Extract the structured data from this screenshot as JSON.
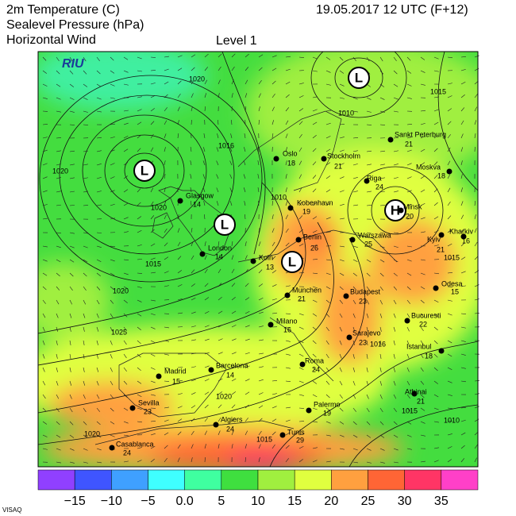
{
  "header": {
    "lines": [
      "2m Temperature (C)",
      "Sealevel Pressure (hPa)",
      "Horizontal Wind"
    ],
    "level": "Level  1",
    "valid_time": "19.05.2017 12 UTC (F+12)"
  },
  "logo": "RIU",
  "pressure_centers": [
    "L",
    "L",
    "L",
    "L",
    "H"
  ],
  "isobar_labels": [
    "1020",
    "1015",
    "1010",
    "1016",
    "1020",
    "1010",
    "1020",
    "1015",
    "1015",
    "1020",
    "1025",
    "1016",
    "1020",
    "1015",
    "1010",
    "1020",
    "1015"
  ],
  "cities": [
    {
      "name": "Oslo",
      "temp": 18
    },
    {
      "name": "Stockholm",
      "temp": 21
    },
    {
      "name": "Sankt Peterburg",
      "temp": 21
    },
    {
      "name": "Moskva",
      "temp": 18
    },
    {
      "name": "Riga",
      "temp": 24
    },
    {
      "name": "Minsk",
      "temp": 20
    },
    {
      "name": "Glasgow",
      "temp": 14
    },
    {
      "name": "Kobenhavn",
      "temp": 19
    },
    {
      "name": "Berlin",
      "temp": 26
    },
    {
      "name": "Warszawa",
      "temp": 25
    },
    {
      "name": "Kharkiv",
      "temp": 16
    },
    {
      "name": "Kyiv",
      "temp": 21
    },
    {
      "name": "London",
      "temp": 14
    },
    {
      "name": "Koln",
      "temp": 13
    },
    {
      "name": "Munchen",
      "temp": 21
    },
    {
      "name": "Budapest",
      "temp": 23
    },
    {
      "name": "Odesa",
      "temp": 15
    },
    {
      "name": "Milano",
      "temp": 16
    },
    {
      "name": "Bucuresti",
      "temp": 22
    },
    {
      "name": "Sarajevo",
      "temp": 23
    },
    {
      "name": "Istanbul",
      "temp": 18
    },
    {
      "name": "Madrid",
      "temp": 15
    },
    {
      "name": "Barcelona",
      "temp": 14
    },
    {
      "name": "Roma",
      "temp": 24
    },
    {
      "name": "Sevilla",
      "temp": 23
    },
    {
      "name": "Palermo",
      "temp": 19
    },
    {
      "name": "Athinai",
      "temp": 21
    },
    {
      "name": "Algiers",
      "temp": 24
    },
    {
      "name": "Tunis",
      "temp": 29
    },
    {
      "name": "Casablanca",
      "temp": 24
    }
  ],
  "colorbar": {
    "colors": [
      "#9040ff",
      "#3f55ff",
      "#3fa0ff",
      "#3fffff",
      "#3fffa0",
      "#3fdf3f",
      "#a0ef3f",
      "#e0ff3f",
      "#ffa03f",
      "#ff6535",
      "#ff3565",
      "#ff40c8"
    ],
    "labels": [
      "−15",
      "−10",
      "−5",
      "0.0",
      "5",
      "10",
      "15",
      "20",
      "25",
      "30",
      "35"
    ]
  },
  "footer": "VISAQ"
}
